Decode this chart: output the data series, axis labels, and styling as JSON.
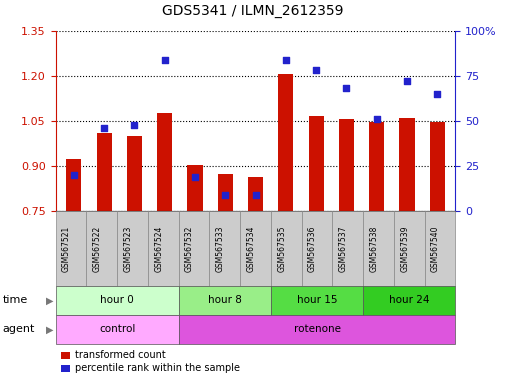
{
  "title": "GDS5341 / ILMN_2612359",
  "samples": [
    "GSM567521",
    "GSM567522",
    "GSM567523",
    "GSM567524",
    "GSM567532",
    "GSM567533",
    "GSM567534",
    "GSM567535",
    "GSM567536",
    "GSM567537",
    "GSM567538",
    "GSM567539",
    "GSM567540"
  ],
  "transformed_count": [
    0.925,
    1.01,
    1.0,
    1.075,
    0.905,
    0.875,
    0.865,
    1.205,
    1.065,
    1.055,
    1.045,
    1.06,
    1.045
  ],
  "percentile_rank": [
    20,
    46,
    48,
    84,
    19,
    9,
    9,
    84,
    78,
    68,
    51,
    72,
    65
  ],
  "ylim_left": [
    0.75,
    1.35
  ],
  "ylim_right": [
    0,
    100
  ],
  "yticks_left": [
    0.75,
    0.9,
    1.05,
    1.2,
    1.35
  ],
  "yticks_right": [
    0,
    25,
    50,
    75,
    100
  ],
  "bar_color": "#cc1100",
  "dot_color": "#2222cc",
  "bar_bottom": 0.75,
  "time_groups": [
    {
      "label": "hour 0",
      "start": 0,
      "end": 3,
      "color": "#ccffcc"
    },
    {
      "label": "hour 8",
      "start": 4,
      "end": 6,
      "color": "#99ee88"
    },
    {
      "label": "hour 15",
      "start": 7,
      "end": 9,
      "color": "#55dd44"
    },
    {
      "label": "hour 24",
      "start": 10,
      "end": 12,
      "color": "#33cc22"
    }
  ],
  "agent_groups": [
    {
      "label": "control",
      "start": 0,
      "end": 3,
      "color": "#ffaaff"
    },
    {
      "label": "rotenone",
      "start": 4,
      "end": 12,
      "color": "#dd55dd"
    }
  ],
  "legend_items": [
    "transformed count",
    "percentile rank within the sample"
  ],
  "legend_colors": [
    "#cc1100",
    "#2222cc"
  ],
  "axis_color_left": "#cc1100",
  "axis_color_right": "#2222cc",
  "sample_box_color": "#cccccc",
  "sample_box_edge": "#888888"
}
